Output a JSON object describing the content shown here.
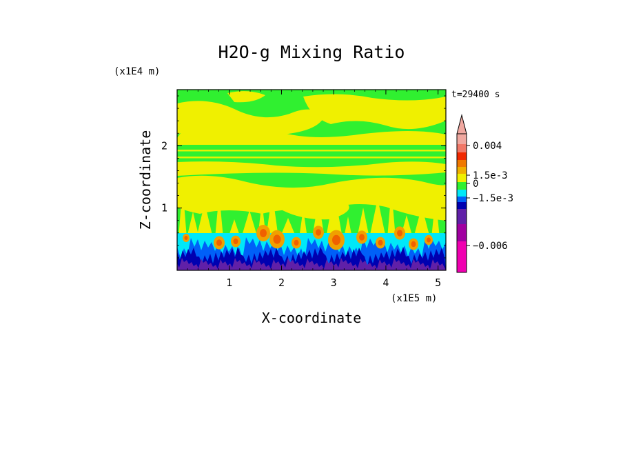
{
  "chart_data": {
    "type": "heatmap",
    "title": "H2O-g Mixing Ratio",
    "xlabel": "X-coordinate",
    "ylabel": "Z-coordinate",
    "x_unit": "(x1E5 m)",
    "y_unit": "(x1E4 m)",
    "time_label": "t=29400 s",
    "xlim": [
      0,
      5.15
    ],
    "ylim": [
      0,
      2.9
    ],
    "x_ticks": [
      1,
      2,
      3,
      4,
      5
    ],
    "y_ticks": [
      1,
      2
    ],
    "x_tick_labels": [
      "1",
      "2",
      "3",
      "4",
      "5"
    ],
    "y_tick_labels": [
      "1",
      "2"
    ],
    "colorbar": {
      "labels": [
        "0.004",
        "1.5e-3",
        "0",
        "−1.5e-3",
        "−0.006"
      ],
      "colors": [
        "#f0a8a0",
        "#f07868",
        "#f02800",
        "#f07800",
        "#f0b000",
        "#f0f000",
        "#30f030",
        "#00e8f8",
        "#0060f8",
        "#0000b0",
        "#6020a8",
        "#a000a0",
        "#f000b0"
      ]
    },
    "field_colors": {
      "yellow": "#f0f000",
      "green": "#30f030",
      "cyan": "#00e8f8",
      "blue": "#0060f8",
      "navy": "#0000b0",
      "purple": "#6020a8",
      "orange": "#f0a000",
      "red": "#f06000"
    }
  }
}
